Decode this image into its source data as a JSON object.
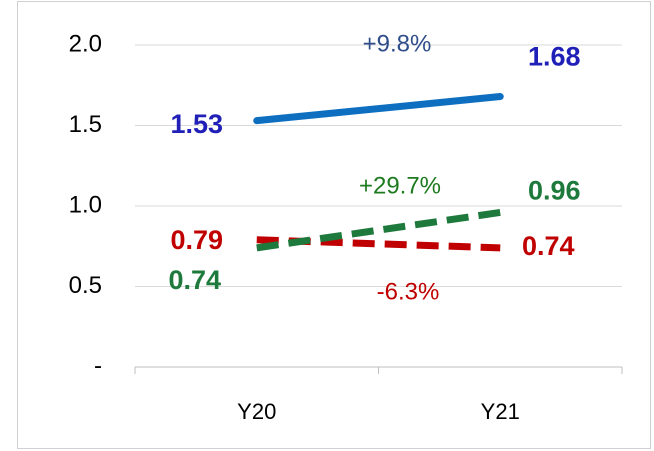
{
  "chart_data": {
    "type": "line",
    "categories": [
      "Y20",
      "Y21"
    ],
    "series": [
      {
        "color": "#0e6fc0",
        "label_color": "#2020b8",
        "dash": false,
        "values": [
          1.53,
          1.68
        ]
      },
      {
        "color": "#c00000",
        "label_color": "#c00000",
        "dash": true,
        "values": [
          0.79,
          0.74
        ]
      },
      {
        "color": "#1e7a3c",
        "label_color": "#1e7a3c",
        "dash": true,
        "values": [
          0.74,
          0.96
        ]
      }
    ],
    "annotations": [
      {
        "text": "+9.8%",
        "color": "#2e4d8a"
      },
      {
        "text": "+29.7%",
        "color": "#1e7a1e"
      },
      {
        "text": "-6.3%",
        "color": "#c00000"
      }
    ],
    "ylim": [
      0,
      2
    ],
    "yticks": [
      {
        "value": 0,
        "label": "-"
      },
      {
        "value": 0.5,
        "label": "0.5"
      },
      {
        "value": 1,
        "label": "1.0"
      },
      {
        "value": 1.5,
        "label": "1.5"
      },
      {
        "value": 2,
        "label": "2.0"
      }
    ],
    "grid": true
  }
}
